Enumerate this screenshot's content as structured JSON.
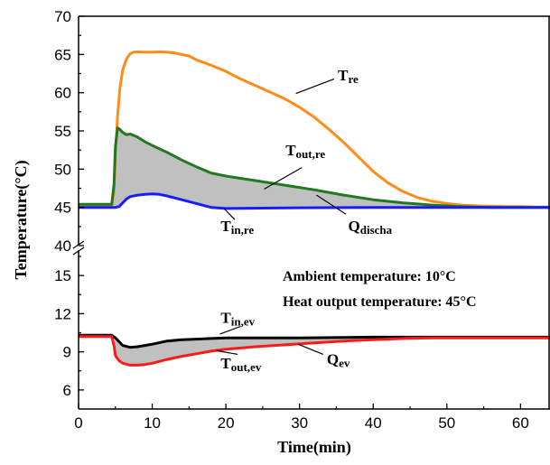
{
  "chart_data": {
    "type": "line",
    "title": "",
    "xlabel": "Time(min)",
    "ylabel": "Temperature(°C)",
    "xlim": [
      0,
      64
    ],
    "x_ticks": [
      "0",
      "10",
      "20",
      "30",
      "40",
      "50",
      "60"
    ],
    "axis_break": true,
    "upper_ylim": [
      40,
      70
    ],
    "upper_y_ticks": [
      "40",
      "45",
      "50",
      "55",
      "60",
      "65",
      "70"
    ],
    "lower_ylim": [
      4.5,
      17
    ],
    "lower_y_ticks": [
      "6",
      "9",
      "12",
      "15"
    ],
    "grid": false,
    "shaded_regions": [
      {
        "label": "Q",
        "label_sub": "discha",
        "between": [
          "T_out,re",
          "T_in,re"
        ],
        "color": "#c0c0c0"
      },
      {
        "label": "Q",
        "label_sub": "ev",
        "between": [
          "T_in,ev",
          "T_out,ev"
        ],
        "color": "#c0c0c0"
      }
    ],
    "series": [
      {
        "name": "T_re",
        "label": "T",
        "label_sub": "re",
        "panel": "upper",
        "color": "#ff8c1a",
        "x": [
          0,
          4.5,
          4.8,
          5,
          5.3,
          5.6,
          6,
          6.5,
          7,
          7.5,
          8,
          9,
          10,
          11,
          12,
          13,
          14,
          15,
          16,
          18,
          20,
          22,
          25,
          28,
          30,
          32,
          34,
          36,
          38,
          40,
          42,
          44,
          46,
          48,
          50,
          52,
          54,
          56,
          58,
          60,
          62,
          64
        ],
        "y": [
          45.2,
          45.2,
          47,
          52,
          57,
          60.5,
          63,
          64.4,
          65.1,
          65.3,
          65.35,
          65.3,
          65.3,
          65.35,
          65.3,
          65.2,
          65.0,
          64.8,
          64.3,
          63.6,
          62.8,
          61.8,
          60.5,
          59.2,
          58.1,
          56.8,
          55.2,
          53.5,
          51.6,
          49.7,
          48.2,
          47.1,
          46.3,
          45.8,
          45.5,
          45.3,
          45.2,
          45.15,
          45.1,
          45.1,
          45.05,
          45.05
        ]
      },
      {
        "name": "T_out,re",
        "label": "T",
        "label_sub": "out,re",
        "panel": "upper",
        "color": "#1f7a1f",
        "x": [
          0,
          4.5,
          4.8,
          5,
          5.3,
          5.6,
          6,
          6.5,
          7,
          8,
          9,
          10,
          12,
          14,
          16,
          18,
          20,
          24,
          28,
          32,
          36,
          40,
          44,
          48,
          52,
          56,
          60,
          64
        ],
        "y": [
          45.4,
          45.4,
          48,
          53,
          55.4,
          55.2,
          54.8,
          54.5,
          54.6,
          54.2,
          53.6,
          53.1,
          52.2,
          51.2,
          50.3,
          49.5,
          49.1,
          48.5,
          47.9,
          47.3,
          46.6,
          46.0,
          45.6,
          45.3,
          45.1,
          45.0,
          45.0,
          45.0
        ]
      },
      {
        "name": "T_in,re",
        "label": "T",
        "label_sub": "in,re",
        "panel": "upper",
        "color": "#1a1aff",
        "x": [
          0,
          5,
          5.5,
          6,
          6.5,
          7,
          8,
          9,
          10,
          11,
          12,
          14,
          16,
          18,
          20,
          25,
          30,
          40,
          50,
          64
        ],
        "y": [
          45.0,
          45.0,
          45.1,
          45.6,
          46.1,
          46.4,
          46.6,
          46.7,
          46.75,
          46.7,
          46.5,
          46.0,
          45.5,
          45.0,
          44.85,
          44.9,
          44.95,
          45.0,
          45.0,
          45.0
        ]
      },
      {
        "name": "T_in,ev",
        "label": "T",
        "label_sub": "in,ev",
        "panel": "lower",
        "color": "#000000",
        "x": [
          0,
          4.5,
          5,
          5.5,
          6,
          7,
          8,
          9,
          10,
          12,
          14,
          16,
          18,
          20,
          25,
          30,
          40,
          50,
          64
        ],
        "y": [
          10.3,
          10.3,
          10.1,
          9.8,
          9.5,
          9.35,
          9.4,
          9.5,
          9.6,
          9.85,
          9.95,
          10.0,
          10.05,
          10.1,
          10.1,
          10.1,
          10.15,
          10.15,
          10.15
        ]
      },
      {
        "name": "T_out,ev",
        "label": "T",
        "label_sub": "out,ev",
        "panel": "lower",
        "color": "#ff1a1a",
        "x": [
          0,
          4.5,
          4.8,
          5,
          5.5,
          6,
          7,
          8,
          9,
          10,
          11,
          12,
          14,
          16,
          18,
          20,
          24,
          28,
          32,
          36,
          40,
          44,
          48,
          52,
          56,
          60,
          64
        ],
        "y": [
          10.2,
          10.2,
          9.5,
          8.7,
          8.3,
          8.1,
          7.95,
          7.95,
          8.0,
          8.1,
          8.25,
          8.4,
          8.65,
          8.85,
          9.05,
          9.2,
          9.4,
          9.55,
          9.7,
          9.85,
          9.95,
          10.05,
          10.1,
          10.1,
          10.1,
          10.1,
          10.1
        ]
      }
    ]
  },
  "annotations": {
    "ambient": "Ambient temperature: 10°C",
    "heat_output": "Heat output temperature: 45°C"
  }
}
